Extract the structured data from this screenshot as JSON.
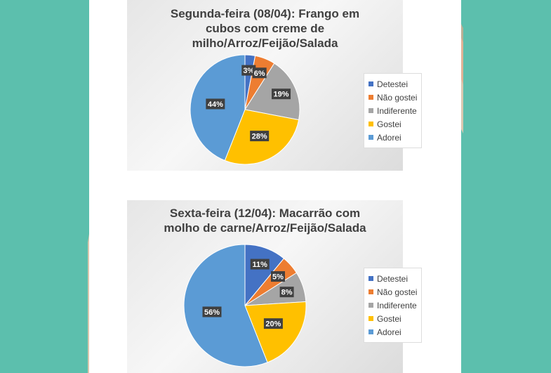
{
  "colors": {
    "teal_background": "#5cbfad",
    "page": "#ffffff",
    "label_box": "#404040"
  },
  "chart_data": [
    {
      "type": "pie",
      "title": "Segunda-feira (08/04): Frango em cubos com creme de milho/Arroz/Feijão/Salada",
      "title_lines": [
        "Segunda-feira (08/04): Frango em",
        "cubos com creme de",
        "milho/Arroz/Feijão/Salada"
      ],
      "categories": [
        "Detestei",
        "Não gostei",
        "Indiferente",
        "Gostei",
        "Adorei"
      ],
      "values": [
        3,
        6,
        19,
        28,
        44
      ],
      "labels": [
        "3%",
        "6%",
        "19%",
        "28%",
        "44%"
      ],
      "colors": [
        "#4472c4",
        "#ed7d31",
        "#a5a5a5",
        "#ffc000",
        "#5b9bd5"
      ],
      "legend_position": "right"
    },
    {
      "type": "pie",
      "title": "Sexta-feira (12/04): Macarrão com molho de carne/Arroz/Feijão/Salada",
      "title_lines": [
        "Sexta-feira (12/04): Macarrão com",
        "molho de carne/Arroz/Feijão/Salada"
      ],
      "categories": [
        "Detestei",
        "Não gostei",
        "Indiferente",
        "Gostei",
        "Adorei"
      ],
      "values": [
        11,
        5,
        8,
        20,
        56
      ],
      "labels": [
        "11%",
        "5%",
        "8%",
        "20%",
        "56%"
      ],
      "colors": [
        "#4472c4",
        "#ed7d31",
        "#a5a5a5",
        "#ffc000",
        "#5b9bd5"
      ],
      "legend_position": "right"
    }
  ]
}
